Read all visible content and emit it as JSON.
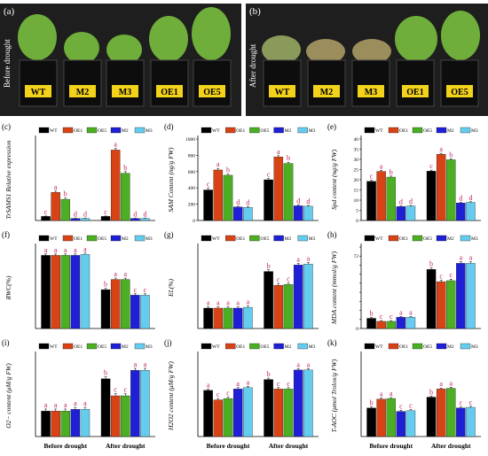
{
  "figure": {
    "photos": [
      {
        "label": "(a)",
        "side_text": "Before drought",
        "pot_labels": [
          "WT",
          "M2",
          "M3",
          "OE1",
          "OE5"
        ]
      },
      {
        "label": "(b)",
        "side_text": "After drought",
        "pot_labels": [
          "WT",
          "M2",
          "M3",
          "OE1",
          "OE5"
        ]
      }
    ]
  },
  "colors": {
    "WT": "#000000",
    "OE1": "#d84315",
    "OE5": "#4caf23",
    "M2": "#1f1fd6",
    "M3": "#66ccee",
    "letters": "#c2185b"
  },
  "chart_data": [
    {
      "panel": "(c)",
      "type": "bar",
      "title": "",
      "xlabel": "",
      "ylabel": "TrSAMS1 Relative expression",
      "ylim": [
        0,
        20
      ],
      "ytick_labels": [],
      "categories": [
        "",
        ""
      ],
      "legend": [
        "WT",
        "OE1",
        "OE5",
        "M2",
        "M3"
      ],
      "legend_position": "top",
      "series": [
        {
          "name": "WT",
          "values": [
            1.0,
            1.0
          ],
          "errors": [
            0.1,
            0.1
          ],
          "letters": [
            "c",
            "c"
          ]
        },
        {
          "name": "OE1",
          "values": [
            6.9,
            17.3
          ],
          "errors": [
            0.3,
            0.4
          ],
          "letters": [
            "a",
            "a"
          ]
        },
        {
          "name": "OE5",
          "values": [
            5.2,
            11.6
          ],
          "errors": [
            0.3,
            0.4
          ],
          "letters": [
            "b",
            "b"
          ]
        },
        {
          "name": "M2",
          "values": [
            0.5,
            0.5
          ],
          "errors": [
            0.05,
            0.05
          ],
          "letters": [
            "d",
            "d"
          ]
        },
        {
          "name": "M3",
          "values": [
            0.5,
            0.5
          ],
          "errors": [
            0.05,
            0.05
          ],
          "letters": [
            "d",
            "d"
          ]
        }
      ]
    },
    {
      "panel": "(d)",
      "type": "bar",
      "title": "",
      "xlabel": "",
      "ylabel": "SAM Content (ng/g FW)",
      "ylim": [
        0,
        1000
      ],
      "ytick_labels": [
        "0",
        "200",
        "400",
        "600",
        "800",
        "1000"
      ],
      "categories": [
        "",
        ""
      ],
      "legend": [
        "WT",
        "OE1",
        "OE5",
        "M2",
        "M3"
      ],
      "legend_position": "top",
      "series": [
        {
          "name": "WT",
          "values": [
            375,
            500
          ],
          "errors": [
            20,
            15
          ],
          "letters": [
            "c",
            "c"
          ]
        },
        {
          "name": "OE1",
          "values": [
            620,
            780
          ],
          "errors": [
            20,
            15
          ],
          "letters": [
            "a",
            "a"
          ]
        },
        {
          "name": "OE5",
          "values": [
            555,
            700
          ],
          "errors": [
            15,
            15
          ],
          "letters": [
            "b",
            "b"
          ]
        },
        {
          "name": "M2",
          "values": [
            165,
            180
          ],
          "errors": [
            10,
            10
          ],
          "letters": [
            "d",
            "d"
          ]
        },
        {
          "name": "M3",
          "values": [
            160,
            175
          ],
          "errors": [
            10,
            10
          ],
          "letters": [
            "d",
            "d"
          ]
        }
      ]
    },
    {
      "panel": "(e)",
      "type": "bar",
      "title": "",
      "xlabel": "",
      "ylabel": "Spd content (ng/g FW)",
      "ylim": [
        0,
        40
      ],
      "ytick_labels": [
        "0",
        "5",
        "10",
        "15",
        "20",
        "25",
        "30",
        "35",
        "40"
      ],
      "categories": [
        "",
        ""
      ],
      "legend": [
        "WT",
        "OE1",
        "OE5",
        "M2",
        "M3"
      ],
      "legend_position": "top",
      "series": [
        {
          "name": "WT",
          "values": [
            19.2,
            24.2
          ],
          "errors": [
            0.5,
            0.5
          ],
          "letters": [
            "c",
            "c"
          ]
        },
        {
          "name": "OE1",
          "values": [
            24.1,
            32.5
          ],
          "errors": [
            0.5,
            0.5
          ],
          "letters": [
            "a",
            "a"
          ]
        },
        {
          "name": "OE5",
          "values": [
            21.3,
            29.8
          ],
          "errors": [
            0.5,
            0.5
          ],
          "letters": [
            "b",
            "b"
          ]
        },
        {
          "name": "M2",
          "values": [
            6.8,
            8.6
          ],
          "errors": [
            0.3,
            0.3
          ],
          "letters": [
            "d",
            "d"
          ]
        },
        {
          "name": "M3",
          "values": [
            7.1,
            8.9
          ],
          "errors": [
            0.3,
            0.3
          ],
          "letters": [
            "d",
            "d"
          ]
        }
      ]
    },
    {
      "panel": "(f)",
      "type": "bar",
      "title": "",
      "xlabel": "",
      "ylabel": "RWC(%)",
      "ylim": [
        0,
        88
      ],
      "ytick_labels": [],
      "categories": [
        "",
        ""
      ],
      "legend": [
        "WT",
        "OE1",
        "OE5",
        "M2",
        "M3"
      ],
      "legend_position": "top",
      "series": [
        {
          "name": "WT",
          "values": [
            79,
            42
          ],
          "errors": [
            1.5,
            1.5
          ],
          "letters": [
            "a",
            "b"
          ]
        },
        {
          "name": "OE1",
          "values": [
            79,
            53
          ],
          "errors": [
            1.5,
            1.5
          ],
          "letters": [
            "a",
            "a"
          ]
        },
        {
          "name": "OE5",
          "values": [
            79,
            53
          ],
          "errors": [
            1.5,
            1.5
          ],
          "letters": [
            "a",
            "a"
          ]
        },
        {
          "name": "M2",
          "values": [
            79,
            36
          ],
          "errors": [
            1.5,
            1.5
          ],
          "letters": [
            "a",
            "c"
          ]
        },
        {
          "name": "M3",
          "values": [
            80,
            36
          ],
          "errors": [
            1.5,
            1.5
          ],
          "letters": [
            "a",
            "c"
          ]
        }
      ]
    },
    {
      "panel": "(g)",
      "type": "bar",
      "title": "",
      "xlabel": "",
      "ylabel": "EL(%)",
      "ylim": [
        0,
        100
      ],
      "ytick_labels": [],
      "categories": [
        "",
        ""
      ],
      "legend": [
        "WT",
        "OE1",
        "OE5",
        "M2",
        "M3"
      ],
      "legend_position": "top",
      "series": [
        {
          "name": "WT",
          "values": [
            25,
            70
          ],
          "errors": [
            1.5,
            2
          ],
          "letters": [
            "a",
            "b"
          ]
        },
        {
          "name": "OE1",
          "values": [
            25,
            53
          ],
          "errors": [
            1.5,
            2
          ],
          "letters": [
            "a",
            "c"
          ]
        },
        {
          "name": "OE5",
          "values": [
            25,
            54
          ],
          "errors": [
            1.5,
            2
          ],
          "letters": [
            "a",
            "c"
          ]
        },
        {
          "name": "M2",
          "values": [
            25,
            78
          ],
          "errors": [
            1.5,
            2
          ],
          "letters": [
            "a",
            "a"
          ]
        },
        {
          "name": "M3",
          "values": [
            26,
            79
          ],
          "errors": [
            1.5,
            2
          ],
          "letters": [
            "a",
            "a"
          ]
        }
      ]
    },
    {
      "panel": "(h)",
      "type": "bar",
      "title": "",
      "xlabel": "",
      "ylabel": "MDA content (mmol/g FW)",
      "ylim": [
        0,
        80
      ],
      "ytick_labels": [
        "0",
        "",
        "",
        "",
        "",
        "",
        "",
        "",
        "72",
        ""
      ],
      "categories": [
        "",
        ""
      ],
      "legend": [
        "WT",
        "OE1",
        "OE5",
        "M2",
        "M3"
      ],
      "legend_position": "top",
      "series": [
        {
          "name": "WT",
          "values": [
            10,
            58
          ],
          "errors": [
            0.8,
            1.5
          ],
          "letters": [
            "b",
            "b"
          ]
        },
        {
          "name": "OE1",
          "values": [
            7,
            46
          ],
          "errors": [
            0.8,
            1.5
          ],
          "letters": [
            "c",
            "c"
          ]
        },
        {
          "name": "OE5",
          "values": [
            7,
            47
          ],
          "errors": [
            0.8,
            1.5
          ],
          "letters": [
            "c",
            "c"
          ]
        },
        {
          "name": "M2",
          "values": [
            11,
            64
          ],
          "errors": [
            0.8,
            1.5
          ],
          "letters": [
            "a",
            "a"
          ]
        },
        {
          "name": "M3",
          "values": [
            11,
            64
          ],
          "errors": [
            0.8,
            1.5
          ],
          "letters": [
            "a",
            "a"
          ]
        }
      ]
    },
    {
      "panel": "(i)",
      "type": "bar",
      "title": "",
      "xlabel": "",
      "ylabel": "O2− content (μM/g FW)",
      "ylim": [
        0,
        4.8
      ],
      "ytick_labels": [],
      "categories": [
        "Before drought",
        "After drought"
      ],
      "legend": [
        "WT",
        "OE1",
        "OE5",
        "M2",
        "M3"
      ],
      "legend_position": "top",
      "series": [
        {
          "name": "WT",
          "values": [
            1.5,
            3.4
          ],
          "errors": [
            0.12,
            0.12
          ],
          "letters": [
            "a",
            "b"
          ]
        },
        {
          "name": "OE1",
          "values": [
            1.5,
            2.4
          ],
          "errors": [
            0.12,
            0.12
          ],
          "letters": [
            "a",
            "c"
          ]
        },
        {
          "name": "OE5",
          "values": [
            1.5,
            2.4
          ],
          "errors": [
            0.12,
            0.12
          ],
          "letters": [
            "a",
            "c"
          ]
        },
        {
          "name": "M2",
          "values": [
            1.6,
            3.9
          ],
          "errors": [
            0.12,
            0.12
          ],
          "letters": [
            "a",
            "a"
          ]
        },
        {
          "name": "M3",
          "values": [
            1.6,
            3.9
          ],
          "errors": [
            0.12,
            0.12
          ],
          "letters": [
            "a",
            "a"
          ]
        }
      ]
    },
    {
      "panel": "(j)",
      "type": "bar",
      "title": "",
      "xlabel": "",
      "ylabel": "H2O2 content (μM/g FW)",
      "ylim": [
        0,
        60
      ],
      "ytick_labels": [],
      "categories": [
        "Before drought",
        "After drought"
      ],
      "legend": [
        "WT",
        "OE1",
        "OE5",
        "M2",
        "M3"
      ],
      "legend_position": "top",
      "series": [
        {
          "name": "WT",
          "values": [
            34,
            42
          ],
          "errors": [
            1,
            1
          ],
          "letters": [
            "a",
            "b"
          ]
        },
        {
          "name": "OE1",
          "values": [
            27,
            35
          ],
          "errors": [
            1,
            1
          ],
          "letters": [
            "c",
            "c"
          ]
        },
        {
          "name": "OE5",
          "values": [
            28,
            35
          ],
          "errors": [
            1,
            1
          ],
          "letters": [
            "c",
            "c"
          ]
        },
        {
          "name": "M2",
          "values": [
            35,
            49
          ],
          "errors": [
            1,
            1
          ],
          "letters": [
            "a",
            "a"
          ]
        },
        {
          "name": "M3",
          "values": [
            36,
            49
          ],
          "errors": [
            1,
            1
          ],
          "letters": [
            "a",
            "a"
          ]
        }
      ]
    },
    {
      "panel": "(k)",
      "type": "bar",
      "title": "",
      "xlabel": "",
      "ylabel": "T-AOC (μmol Trolox/g FW)",
      "ylim": [
        0,
        120
      ],
      "ytick_labels": [],
      "categories": [
        "Before drought",
        "After drought"
      ],
      "legend": [
        "WT",
        "OE1",
        "OE5",
        "M2",
        "M3"
      ],
      "legend_position": "top",
      "series": [
        {
          "name": "WT",
          "values": [
            42,
            58
          ],
          "errors": [
            1.5,
            1.5
          ],
          "letters": [
            "b",
            "b"
          ]
        },
        {
          "name": "OE1",
          "values": [
            55,
            70
          ],
          "errors": [
            1.5,
            1.5
          ],
          "letters": [
            "a",
            "a"
          ]
        },
        {
          "name": "OE5",
          "values": [
            56,
            71
          ],
          "errors": [
            1.5,
            1.5
          ],
          "letters": [
            "a",
            "a"
          ]
        },
        {
          "name": "M2",
          "values": [
            37,
            42
          ],
          "errors": [
            1.5,
            1.5
          ],
          "letters": [
            "c",
            "c"
          ]
        },
        {
          "name": "M3",
          "values": [
            38,
            43
          ],
          "errors": [
            1.5,
            1.5
          ],
          "letters": [
            "c",
            "c"
          ]
        }
      ]
    }
  ]
}
